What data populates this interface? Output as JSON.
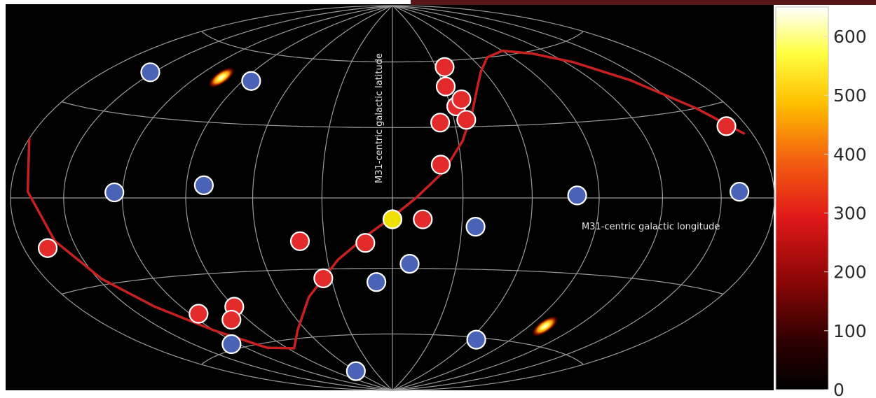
{
  "chart_data": {
    "type": "scatter",
    "projection": "Hammer-Aitoff all-sky map",
    "title": "",
    "xlabel": "M31-centric galactic longitude",
    "ylabel": "M31-centric galactic latitude",
    "xlim": [
      -180,
      180
    ],
    "ylim": [
      -90,
      90
    ],
    "grid": true,
    "grid_step_lon": 30,
    "grid_step_lat": 30,
    "colorbar": {
      "min": 0,
      "max": 650,
      "ticks": [
        0,
        100,
        200,
        300,
        400,
        500,
        600
      ],
      "colormap": [
        "#000000",
        "#5a0000",
        "#c81010",
        "#f05010",
        "#ffb000",
        "#ffff20",
        "#ffffff"
      ]
    },
    "colors": {
      "background": "#000000",
      "grid": "#9a9a9a",
      "curve": "#c82020",
      "red_marker": "#e42b2b",
      "blue_marker": "#4a63b6",
      "center_marker": "#f0e000",
      "frame_topbar": "#5a1616"
    },
    "hotspots": [
      {
        "lon": -105,
        "lat": 48,
        "intensity": 620,
        "angle": -35
      },
      {
        "lon": 100,
        "lat": -52,
        "intensity": 620,
        "angle": -35
      }
    ],
    "curve": [
      {
        "lon": -180,
        "lat": 18
      },
      {
        "lon": -170,
        "lat": 2
      },
      {
        "lon": -160,
        "lat": -14
      },
      {
        "lon": -148,
        "lat": -28
      },
      {
        "lon": -135,
        "lat": -40
      },
      {
        "lon": -120,
        "lat": -52
      },
      {
        "lon": -105,
        "lat": -62
      },
      {
        "lon": -85,
        "lat": -64
      },
      {
        "lon": -65,
        "lat": -56
      },
      {
        "lon": -45,
        "lat": -42
      },
      {
        "lon": -25,
        "lat": -26
      },
      {
        "lon": -10,
        "lat": -15
      },
      {
        "lon": 0,
        "lat": -8
      },
      {
        "lon": 10,
        "lat": 0
      },
      {
        "lon": 22,
        "lat": 11
      },
      {
        "lon": 32,
        "lat": 24
      },
      {
        "lon": 40,
        "lat": 36
      },
      {
        "lon": 48,
        "lat": 46
      },
      {
        "lon": 58,
        "lat": 54
      },
      {
        "lon": 72,
        "lat": 60
      },
      {
        "lon": 90,
        "lat": 62
      },
      {
        "lon": 108,
        "lat": 59
      },
      {
        "lon": 125,
        "lat": 53
      },
      {
        "lon": 142,
        "lat": 43
      },
      {
        "lon": 160,
        "lat": 30
      },
      {
        "lon": 175,
        "lat": 20
      }
    ],
    "markers": [
      {
        "label": "",
        "kind": "center",
        "lon": 0,
        "lat": -9
      },
      {
        "label": "",
        "kind": "red",
        "lon": 23,
        "lat": 32
      },
      {
        "label": "",
        "kind": "red",
        "lon": 31,
        "lat": 48
      },
      {
        "label": "",
        "kind": "red",
        "lon": 33,
        "lat": 39
      },
      {
        "lon": 36,
        "lat": 33,
        "kind": "red",
        "label": ""
      },
      {
        "lon": 37,
        "lat": 42,
        "kind": "red",
        "label": ""
      },
      {
        "lon": 36,
        "lat": 57,
        "kind": "red",
        "label": ""
      },
      {
        "lon": 21,
        "lat": 14,
        "kind": "red",
        "label": ""
      },
      {
        "lon": 13,
        "lat": -9,
        "kind": "red",
        "label": ""
      },
      {
        "lon": -12,
        "lat": -19,
        "kind": "red",
        "label": ""
      },
      {
        "lon": -41,
        "lat": -18,
        "kind": "red",
        "label": ""
      },
      {
        "lon": -34,
        "lat": -34,
        "kind": "red",
        "label": ""
      },
      {
        "lon": -90,
        "lat": -44,
        "kind": "red",
        "label": ""
      },
      {
        "lon": -115,
        "lat": -45,
        "kind": "red",
        "label": ""
      },
      {
        "lon": -100,
        "lat": -49,
        "kind": "red",
        "label": ""
      },
      {
        "lon": -166,
        "lat": -16,
        "kind": "red",
        "label": ""
      },
      {
        "lon": 168,
        "lat": 23,
        "kind": "red",
        "label": ""
      },
      {
        "lon": -85,
        "lat": 48,
        "kind": "blue",
        "label": ""
      },
      {
        "lon": -152,
        "lat": 45,
        "kind": "blue",
        "label": ""
      },
      {
        "lon": -124,
        "lat": 2,
        "kind": "blue",
        "label": ""
      },
      {
        "lon": -82,
        "lat": 5,
        "kind": "blue",
        "label": ""
      },
      {
        "lon": 80,
        "lat": 1,
        "kind": "blue",
        "label": ""
      },
      {
        "lon": 160,
        "lat": 2,
        "kind": "blue",
        "label": ""
      },
      {
        "lon": 36,
        "lat": -12,
        "kind": "blue",
        "label": ""
      },
      {
        "lon": 8,
        "lat": -28,
        "kind": "blue",
        "label": ""
      },
      {
        "lon": -8,
        "lat": -36,
        "kind": "blue",
        "label": ""
      },
      {
        "lon": -125,
        "lat": -58,
        "kind": "blue",
        "label": ""
      },
      {
        "lon": 65,
        "lat": -61,
        "kind": "blue",
        "label": ""
      },
      {
        "lon": -60,
        "lat": -78,
        "kind": "blue",
        "label": ""
      }
    ]
  }
}
